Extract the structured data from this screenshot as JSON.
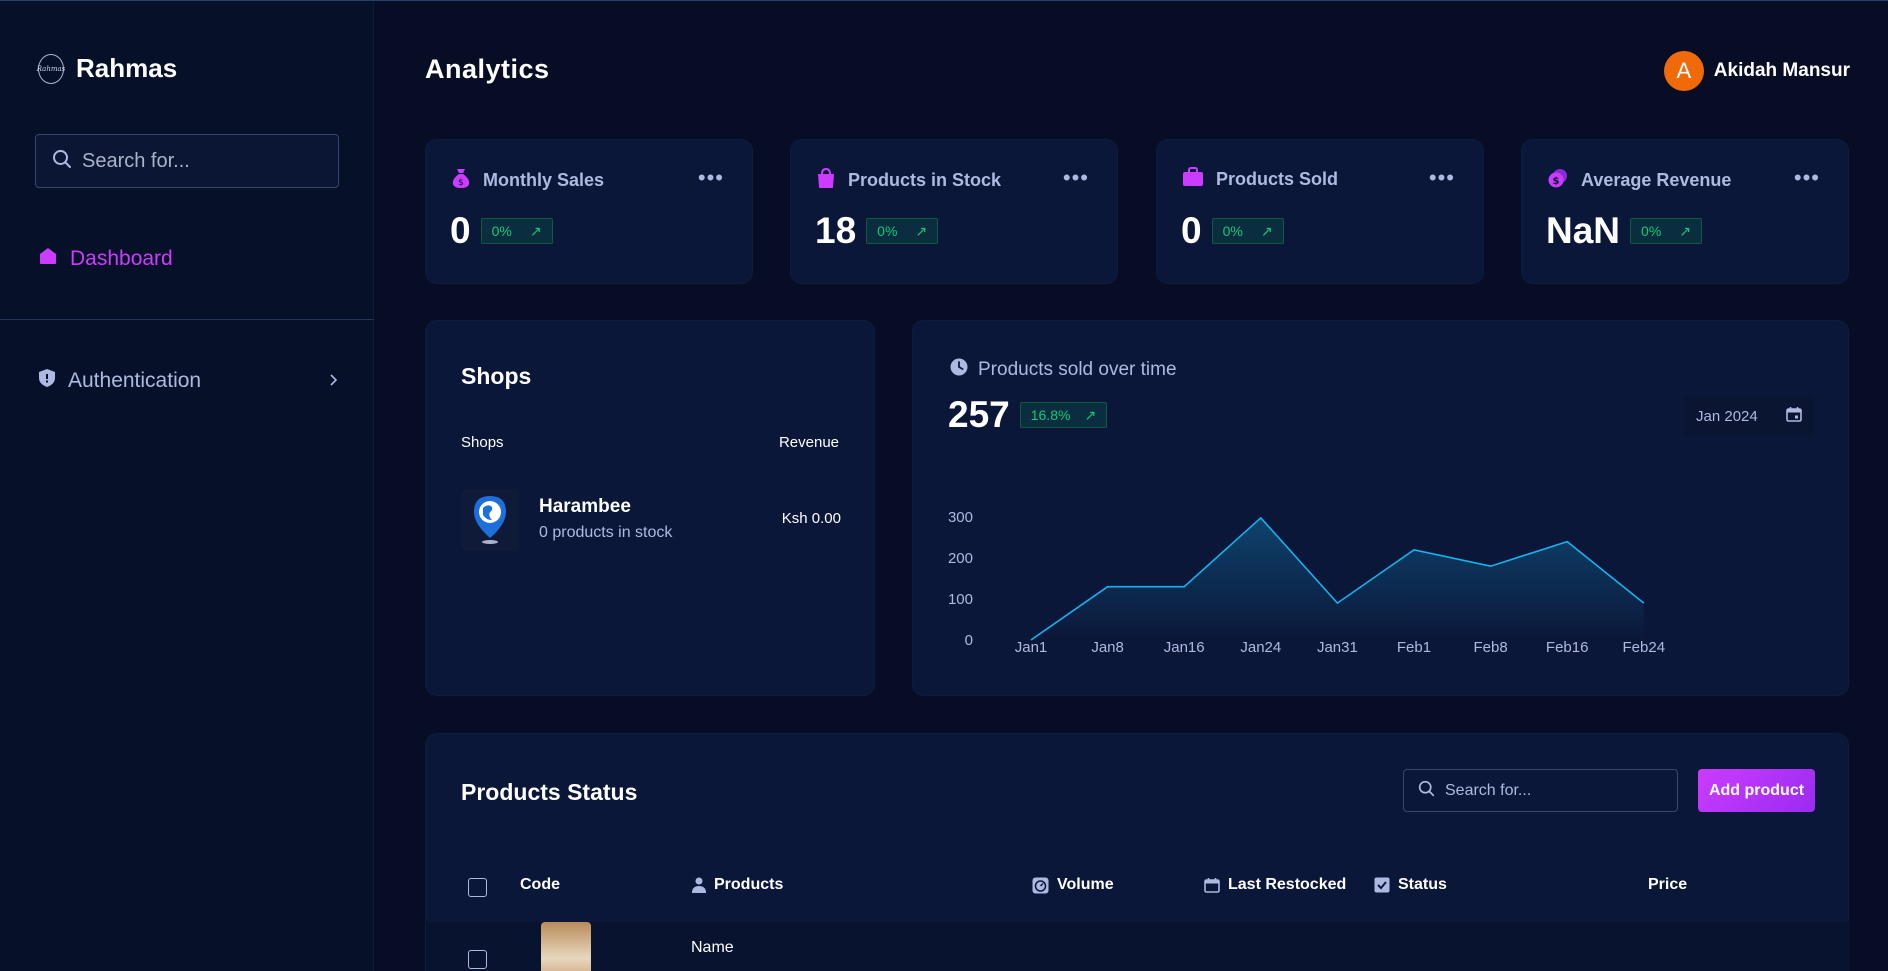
{
  "brand": {
    "name": "Rahmas",
    "logo_text": "Rahmas"
  },
  "sidebar": {
    "search_placeholder": "Search for...",
    "items": [
      {
        "label": "Dashboard",
        "icon": "home-icon",
        "active": true
      },
      {
        "label": "Authentication",
        "icon": "shield-icon",
        "active": false
      }
    ]
  },
  "header": {
    "title": "Analytics",
    "user_name": "Akidah Mansur",
    "avatar_letter": "A",
    "avatar_color": "#f06a0a"
  },
  "stats": [
    {
      "title": "Monthly Sales",
      "value": "0",
      "change": "0%",
      "icon": "money-bag-icon"
    },
    {
      "title": "Products in Stock",
      "value": "18",
      "change": "0%",
      "icon": "shopping-bag-icon"
    },
    {
      "title": "Products Sold",
      "value": "0",
      "change": "0%",
      "icon": "briefcase-icon"
    },
    {
      "title": "Average Revenue",
      "value": "NaN",
      "change": "0%",
      "icon": "coin-icon"
    }
  ],
  "shops": {
    "title": "Shops",
    "col_shops": "Shops",
    "col_revenue": "Revenue",
    "rows": [
      {
        "name": "Harambee",
        "stock": "0 products in stock",
        "revenue": "Ksh  0.00"
      }
    ]
  },
  "sales_chart": {
    "title": "Products sold over time",
    "total": "257",
    "change": "16.8%",
    "date": "Jan 2024"
  },
  "chart_data": {
    "type": "area",
    "title": "Products sold over time",
    "categories": [
      "Jan1",
      "Jan8",
      "Jan16",
      "Jan24",
      "Jan31",
      "Feb1",
      "Feb8",
      "Feb16",
      "Feb24"
    ],
    "values": [
      0,
      130,
      130,
      298,
      90,
      220,
      180,
      240,
      90
    ],
    "ylim": [
      0,
      300
    ],
    "yticks": [
      "300",
      "200",
      "100",
      "0"
    ],
    "grid": false,
    "line_color": "#17b3f0"
  },
  "products": {
    "title": "Products Status",
    "search_placeholder": "Search for...",
    "add_label": "Add product",
    "columns": [
      "Code",
      "Products",
      "Volume",
      "Last Restocked",
      "Status",
      "Price"
    ],
    "row": {
      "name": "Name"
    }
  },
  "colors": {
    "accent": "#cb3cff",
    "positive": "#14ca74",
    "card": "#0b1739",
    "background": "#060d24"
  }
}
